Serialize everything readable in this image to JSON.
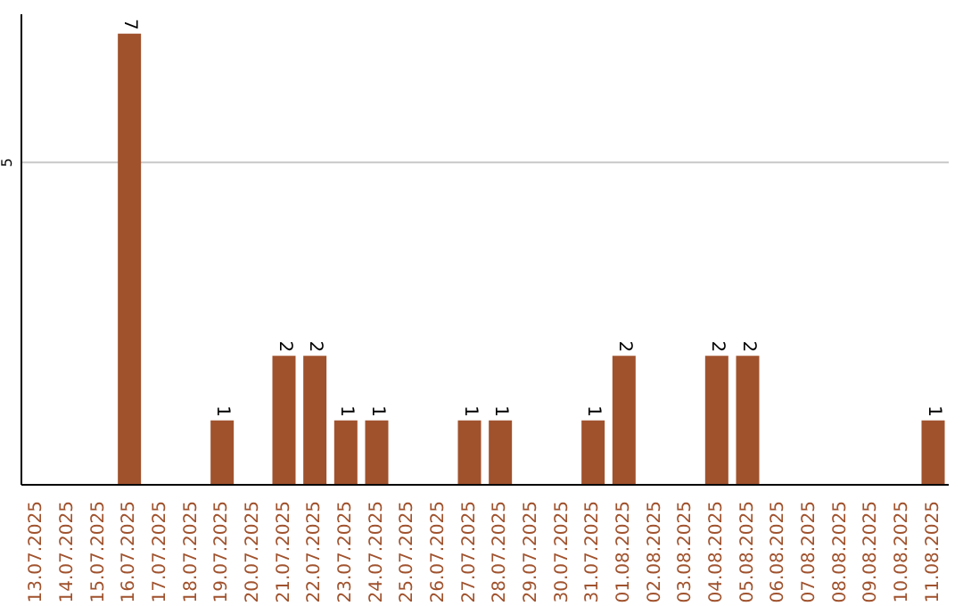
{
  "chart_data": {
    "type": "bar",
    "categories": [
      "13.07.2025",
      "14.07.2025",
      "15.07.2025",
      "16.07.2025",
      "17.07.2025",
      "18.07.2025",
      "19.07.2025",
      "20.07.2025",
      "21.07.2025",
      "22.07.2025",
      "23.07.2025",
      "24.07.2025",
      "25.07.2025",
      "26.07.2025",
      "27.07.2025",
      "28.07.2025",
      "29.07.2025",
      "30.07.2025",
      "31.07.2025",
      "01.08.2025",
      "02.08.2025",
      "03.08.2025",
      "04.08.2025",
      "05.08.2025",
      "06.08.2025",
      "07.08.2025",
      "08.08.2025",
      "09.08.2025",
      "10.08.2025",
      "11.08.2025"
    ],
    "values": [
      0,
      0,
      0,
      7,
      0,
      0,
      1,
      0,
      2,
      2,
      1,
      1,
      0,
      0,
      1,
      1,
      0,
      0,
      1,
      2,
      0,
      0,
      2,
      2,
      0,
      0,
      0,
      0,
      0,
      1
    ],
    "value_labels": [
      null,
      null,
      null,
      "7",
      null,
      null,
      "1",
      null,
      "2",
      "2",
      "1",
      "1",
      null,
      null,
      "1",
      "1",
      null,
      null,
      "1",
      "2",
      null,
      null,
      "2",
      "2",
      null,
      null,
      null,
      null,
      null,
      "1"
    ],
    "color": "#a0522d",
    "ylim": [
      0,
      7.3
    ],
    "yticks": [
      5
    ],
    "grid": "y"
  }
}
